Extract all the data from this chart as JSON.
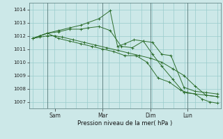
{
  "background_color": "#cce8e8",
  "grid_color": "#99cccc",
  "line_color": "#2d6e2d",
  "xlabel": "Pression niveau de la mer( hPa )",
  "ylim": [
    1006.5,
    1014.5
  ],
  "yticks": [
    1007,
    1008,
    1009,
    1010,
    1011,
    1012,
    1013,
    1014
  ],
  "xtick_labels": [
    "Sam",
    "Mar",
    "Dim",
    "Lun"
  ],
  "xtick_positions": [
    0.12,
    0.38,
    0.64,
    0.84
  ],
  "vline_positions": [
    0.08,
    0.38,
    0.64,
    0.84
  ],
  "series": [
    {
      "x": [
        0.0,
        0.04,
        0.08,
        0.12,
        0.16,
        0.22,
        0.28,
        0.34,
        0.4,
        0.46,
        0.52,
        0.58,
        0.64,
        0.7,
        0.76,
        0.82,
        0.88,
        0.94,
        1.0
      ],
      "y": [
        1011.8,
        1011.9,
        1012.0,
        1012.0,
        1011.9,
        1011.7,
        1011.5,
        1011.3,
        1011.1,
        1010.9,
        1010.7,
        1010.5,
        1010.3,
        1010.0,
        1009.5,
        1009.0,
        1008.2,
        1007.5,
        1007.4
      ]
    },
    {
      "x": [
        0.0,
        0.04,
        0.08,
        0.14,
        0.2,
        0.26,
        0.3,
        0.36,
        0.42,
        0.46,
        0.5,
        0.55,
        0.6,
        0.65,
        0.7,
        0.75,
        0.82,
        0.88,
        0.94,
        1.0
      ],
      "y": [
        1011.8,
        1012.0,
        1012.2,
        1012.4,
        1012.6,
        1012.8,
        1013.0,
        1013.3,
        1013.9,
        1011.2,
        1011.4,
        1011.7,
        1011.6,
        1011.5,
        1010.6,
        1010.5,
        1008.1,
        1007.8,
        1007.7,
        1007.6
      ]
    },
    {
      "x": [
        0.0,
        0.04,
        0.08,
        0.14,
        0.2,
        0.26,
        0.3,
        0.36,
        0.42,
        0.48,
        0.54,
        0.6,
        0.65,
        0.7,
        0.76,
        0.82,
        0.88,
        0.94,
        1.0
      ],
      "y": [
        1011.8,
        1012.0,
        1012.2,
        1012.3,
        1012.5,
        1012.5,
        1012.6,
        1012.7,
        1012.4,
        1011.2,
        1011.1,
        1011.6,
        1010.6,
        1009.7,
        1008.7,
        1007.7,
        1007.6,
        1007.5,
        1007.4
      ]
    },
    {
      "x": [
        0.0,
        0.04,
        0.08,
        0.14,
        0.2,
        0.26,
        0.32,
        0.38,
        0.44,
        0.5,
        0.56,
        0.62,
        0.68,
        0.74,
        0.8,
        0.84,
        0.88,
        0.92,
        0.96,
        1.0
      ],
      "y": [
        1011.8,
        1012.0,
        1012.2,
        1011.8,
        1011.6,
        1011.4,
        1011.2,
        1011.0,
        1010.8,
        1010.5,
        1010.5,
        1010.0,
        1008.8,
        1008.5,
        1007.9,
        1007.7,
        1007.6,
        1007.2,
        1007.0,
        1006.9
      ]
    }
  ]
}
